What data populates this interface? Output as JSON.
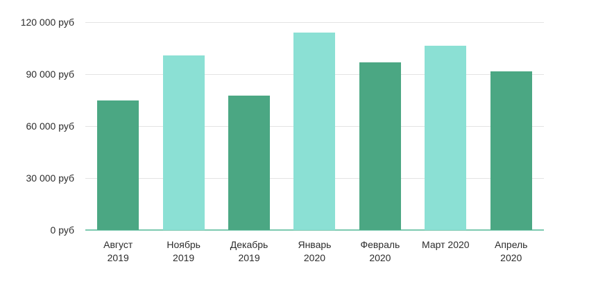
{
  "chart_data": {
    "type": "bar",
    "title": "",
    "xlabel": "",
    "ylabel": "",
    "categories": [
      "Август 2019",
      "Ноябрь 2019",
      "Декабрь 2019",
      "Январь 2020",
      "Февраль 2020",
      "Март 2020",
      "Апрель 2020"
    ],
    "category_lines": [
      [
        "Август",
        "2019"
      ],
      [
        "Ноябрь",
        "2019"
      ],
      [
        "Декабрь",
        "2019"
      ],
      [
        "Январь",
        "2020"
      ],
      [
        "Февраль",
        "2020"
      ],
      [
        "Март 2020"
      ],
      [
        "Апрель",
        "2020"
      ]
    ],
    "values": [
      75000,
      101000,
      77500,
      114000,
      96800,
      106500,
      91500
    ],
    "bar_colors": [
      "#4BA783",
      "#8BE0D4",
      "#4BA783",
      "#8BE0D4",
      "#4BA783",
      "#8BE0D4",
      "#4BA783"
    ],
    "ylim": [
      0,
      120000
    ],
    "y_ticks": [
      {
        "value": 120000,
        "label": "120 000 руб"
      },
      {
        "value": 90000,
        "label": "90 000 руб"
      },
      {
        "value": 60000,
        "label": "60 000 руб"
      },
      {
        "value": 30000,
        "label": "30 000 руб"
      },
      {
        "value": 0,
        "label": "0 руб"
      }
    ],
    "grid": true,
    "legend": "none",
    "colors": {
      "bar_dark": "#4BA783",
      "bar_light": "#8BE0D4",
      "grid": "#e3e3e3",
      "baseline": "#7CC9B0",
      "text": "#2b2b2b",
      "background": "#ffffff"
    }
  }
}
